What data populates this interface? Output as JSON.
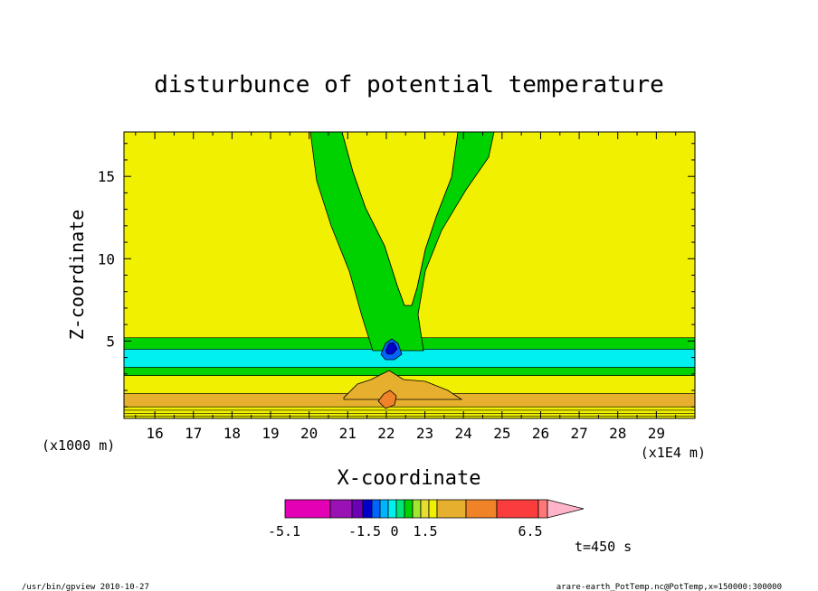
{
  "chart_data": {
    "type": "heatmap",
    "title": "disturbunce of potential temperature",
    "xlabel": "X-coordinate",
    "ylabel": "Z-coordinate",
    "x_unit_label": "(x1000 m)",
    "x_scale_label": "(x1E4 m)",
    "xlim": [
      15.2,
      30.0
    ],
    "ylim": [
      0.3,
      17.7
    ],
    "x_ticks": [
      16,
      17,
      18,
      19,
      20,
      21,
      22,
      23,
      24,
      25,
      26,
      27,
      28,
      29
    ],
    "y_ticks": [
      5,
      10,
      15
    ],
    "x_tick_labels": [
      "16",
      "17",
      "18",
      "19",
      "20",
      "21",
      "22",
      "23",
      "24",
      "25",
      "26",
      "27",
      "28",
      "29"
    ],
    "y_tick_labels": [
      "5",
      "10",
      "15"
    ],
    "colorbar": {
      "colors": [
        "#e400b4",
        "#9a12b4",
        "#6c00b4",
        "#0000c8",
        "#0064ff",
        "#00b4ff",
        "#00f0f0",
        "#00e678",
        "#00d200",
        "#a0e632",
        "#e6dc32",
        "#f0f000",
        "#e6af2d",
        "#f08228",
        "#fa3c3c",
        "#ff7878",
        "#ffb4c8"
      ],
      "labels": [
        "-5.1",
        "-1.5",
        "0",
        "1.5",
        "6.5"
      ]
    },
    "time_label": "t=450 s",
    "regions": {
      "background_band_from_top": "#f0f000",
      "tower_green": "#00d200",
      "band_layers": [
        {
          "z0": 5.2,
          "z1": 4.5,
          "color": "#00d200"
        },
        {
          "z0": 4.5,
          "z1": 3.4,
          "color": "#00f0f0"
        },
        {
          "z0": 3.4,
          "z1": 2.9,
          "color": "#00d200"
        },
        {
          "z0": 2.9,
          "z1": 1.8,
          "color": "#f0f000"
        },
        {
          "z0": 1.8,
          "z1": 1.0,
          "color": "#e6af2d"
        },
        {
          "z0": 1.0,
          "z1": 0.3,
          "color": "#f0f000"
        }
      ]
    }
  },
  "footer": {
    "left": "/usr/bin/gpview   2010-10-27",
    "right": "arare-earth_PotTemp.nc@PotTemp,x=150000:300000"
  }
}
